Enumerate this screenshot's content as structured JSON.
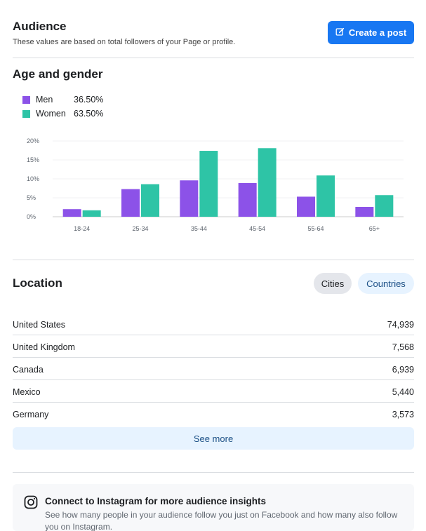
{
  "header": {
    "title": "Audience",
    "subtitle": "These values are based on total followers of your Page or profile.",
    "create_button": "Create a post",
    "create_icon": "edit-icon"
  },
  "age_gender": {
    "title": "Age and gender",
    "legend": [
      {
        "name": "Men",
        "value": "36.50%",
        "color": "#8c52e8"
      },
      {
        "name": "Women",
        "value": "63.50%",
        "color": "#2ec4a6"
      }
    ]
  },
  "chart_data": {
    "type": "bar",
    "categories": [
      "18-24",
      "25-34",
      "35-44",
      "45-54",
      "55-64",
      "65+"
    ],
    "series": [
      {
        "name": "Men",
        "values": [
          2.0,
          7.3,
          9.6,
          8.9,
          5.3,
          2.6
        ],
        "color": "#8c52e8"
      },
      {
        "name": "Women",
        "values": [
          1.7,
          8.6,
          17.4,
          18.1,
          10.9,
          5.7
        ],
        "color": "#2ec4a6"
      }
    ],
    "yticks": [
      "0%",
      "5%",
      "10%",
      "15%",
      "20%"
    ],
    "ylim": [
      0,
      20
    ],
    "grid": true
  },
  "location": {
    "title": "Location",
    "tabs": [
      "Cities",
      "Countries"
    ],
    "rows": [
      {
        "name": "United States",
        "value": "74,939"
      },
      {
        "name": "United Kingdom",
        "value": "7,568"
      },
      {
        "name": "Canada",
        "value": "6,939"
      },
      {
        "name": "Mexico",
        "value": "5,440"
      },
      {
        "name": "Germany",
        "value": "3,573"
      }
    ],
    "see_more": "See more"
  },
  "instagram": {
    "icon": "instagram-icon",
    "title": "Connect to Instagram for more audience insights",
    "text": "See how many people in your audience follow you just on Facebook and how many also follow you on Instagram."
  }
}
